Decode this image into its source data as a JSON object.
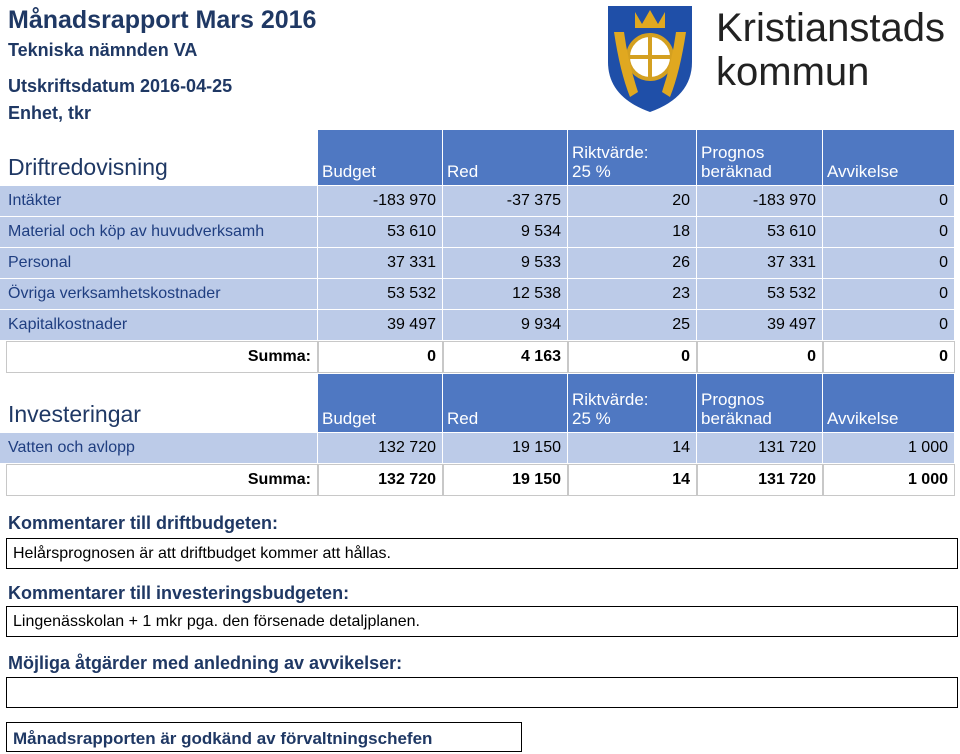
{
  "header": {
    "title": "Månadsrapport Mars 2016",
    "subtitle": "Tekniska nämnden VA",
    "date": "Utskriftsdatum 2016-04-25",
    "unit": "Enhet, tkr"
  },
  "logo": {
    "line1": "Kristianstads",
    "line2": "kommun"
  },
  "drift": {
    "heading": "Driftredovisning",
    "columns": [
      "Budget",
      "Red",
      "Riktvärde:\n25 %",
      "Prognos\nberäknad",
      "Avvikelse"
    ],
    "rows": [
      {
        "label": "Intäkter",
        "values": [
          "-183 970",
          "-37 375",
          "20",
          "-183 970",
          "0"
        ]
      },
      {
        "label": "Material och köp av huvudverksamh",
        "values": [
          "53 610",
          "9 534",
          "18",
          "53 610",
          "0"
        ]
      },
      {
        "label": "Personal",
        "values": [
          "37 331",
          "9 533",
          "26",
          "37 331",
          "0"
        ]
      },
      {
        "label": "Övriga verksamhetskostnader",
        "values": [
          "53 532",
          "12 538",
          "23",
          "53 532",
          "0"
        ]
      },
      {
        "label": "Kapitalkostnader",
        "values": [
          "39 497",
          "9 934",
          "25",
          "39 497",
          "0"
        ]
      }
    ],
    "sum": {
      "label": "Summa:",
      "values": [
        "0",
        "4 163",
        "0",
        "0",
        "0"
      ]
    }
  },
  "invest": {
    "heading": "Investeringar",
    "columns": [
      "Budget",
      "Red",
      "Riktvärde:\n25 %",
      "Prognos\nberäknad",
      "Avvikelse"
    ],
    "rows": [
      {
        "label": "Vatten och avlopp",
        "values": [
          "132 720",
          "19 150",
          "14",
          "131 720",
          "1 000"
        ]
      }
    ],
    "sum": {
      "label": "Summa:",
      "values": [
        "132 720",
        "19 150",
        "14",
        "131 720",
        "1 000"
      ]
    }
  },
  "comments": {
    "drift_heading": "Kommentarer till driftbudgeten:",
    "drift_text": "Helårsprognosen är att driftbudget kommer att hållas.",
    "invest_heading": "Kommentarer till investeringsbudgeten:",
    "invest_text": "Lingenässkolan + 1 mkr pga. den försenade detaljplanen.",
    "actions_heading": "Möjliga åtgärder med anledning av avvikelser:",
    "approval": "Månadsrapporten är godkänd av förvaltningschefen"
  }
}
